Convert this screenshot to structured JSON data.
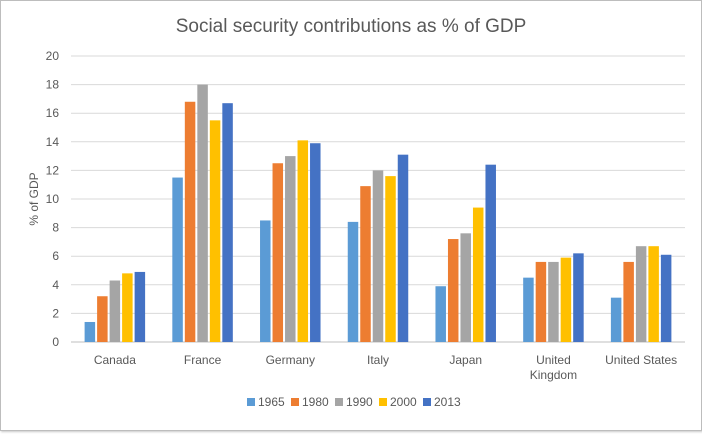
{
  "chart_data": {
    "type": "bar",
    "title": "Social security contributions as % of GDP",
    "xlabel": "",
    "ylabel": "% of GDP",
    "ylim": [
      0,
      20
    ],
    "yticks": [
      0,
      2,
      4,
      6,
      8,
      10,
      12,
      14,
      16,
      18,
      20
    ],
    "grid": true,
    "legend_position": "bottom",
    "categories": [
      {
        "lines": [
          "Canada"
        ]
      },
      {
        "lines": [
          "France"
        ]
      },
      {
        "lines": [
          "Germany"
        ]
      },
      {
        "lines": [
          "Italy"
        ]
      },
      {
        "lines": [
          "Japan"
        ]
      },
      {
        "lines": [
          "United",
          "Kingdom"
        ]
      },
      {
        "lines": [
          "United States"
        ]
      }
    ],
    "series": [
      {
        "name": "1965",
        "color": "#5B9BD5",
        "values": [
          1.4,
          11.5,
          8.5,
          8.4,
          3.9,
          4.5,
          3.1
        ]
      },
      {
        "name": "1980",
        "color": "#ED7D31",
        "values": [
          3.2,
          16.8,
          12.5,
          10.9,
          7.2,
          5.6,
          5.6
        ]
      },
      {
        "name": "1990",
        "color": "#A5A5A5",
        "values": [
          4.3,
          18.0,
          13.0,
          12.0,
          7.6,
          5.6,
          6.7
        ]
      },
      {
        "name": "2000",
        "color": "#FFC000",
        "values": [
          4.8,
          15.5,
          14.1,
          11.6,
          9.4,
          5.9,
          6.7
        ]
      },
      {
        "name": "2013",
        "color": "#4472C4",
        "values": [
          4.9,
          16.7,
          13.9,
          13.1,
          12.4,
          6.2,
          6.1
        ]
      }
    ]
  }
}
